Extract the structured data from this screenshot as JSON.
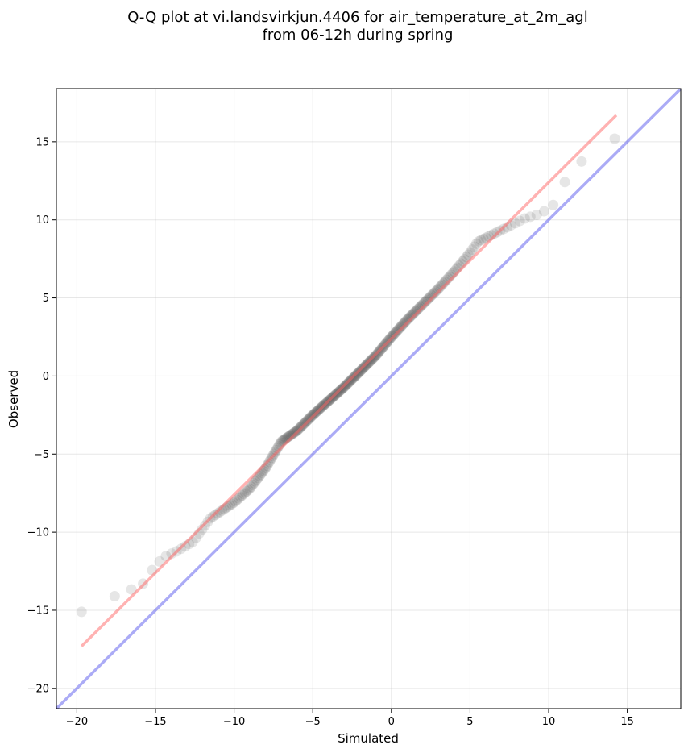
{
  "chart_data": {
    "type": "scatter",
    "title_lines": [
      "Q-Q plot at vi.landsvirkjun.4406 for air_temperature_at_2m_agl",
      "from 06-12h during spring"
    ],
    "xlabel": "Simulated",
    "ylabel": "Observed",
    "xlim": [
      -21.3,
      18.4
    ],
    "ylim": [
      -21.3,
      18.4
    ],
    "xticks": [
      -20,
      -15,
      -10,
      -5,
      0,
      5,
      10,
      15
    ],
    "yticks": [
      -20,
      -15,
      -10,
      -5,
      0,
      5,
      10,
      15
    ],
    "xtick_labels": [
      "−20",
      "−15",
      "−10",
      "−5",
      "0",
      "5",
      "10",
      "15"
    ],
    "ytick_labels": [
      "−20",
      "−15",
      "−10",
      "−5",
      "0",
      "5",
      "10",
      "15"
    ],
    "grid": true,
    "point_color": "#333333",
    "fit_line_color": "#ff6666",
    "identity_line_color": "#6666ee",
    "fit_line": {
      "x": [
        -19.7,
        14.3
      ],
      "y": [
        -17.3,
        16.7
      ]
    },
    "identity_line": {
      "x": [
        -21.3,
        18.4
      ],
      "y": [
        -21.3,
        18.4
      ]
    },
    "anchors": [
      {
        "x": -19.7,
        "y": -15.1
      },
      {
        "x": -19.1,
        "y": -14.4
      },
      {
        "x": -18.4,
        "y": -14.2
      },
      {
        "x": -17.6,
        "y": -14.1
      },
      {
        "x": -16.6,
        "y": -13.7
      },
      {
        "x": -15.6,
        "y": -13.2
      },
      {
        "x": -15.2,
        "y": -12.4
      },
      {
        "x": -14.5,
        "y": -11.6
      },
      {
        "x": -13.6,
        "y": -11.2
      },
      {
        "x": -12.6,
        "y": -10.6
      },
      {
        "x": -11.5,
        "y": -9.1
      },
      {
        "x": -10.0,
        "y": -8.1
      },
      {
        "x": -9.0,
        "y": -7.2
      },
      {
        "x": -8.0,
        "y": -5.9
      },
      {
        "x": -7.0,
        "y": -4.2
      },
      {
        "x": -6.0,
        "y": -3.5
      },
      {
        "x": -5.0,
        "y": -2.5
      },
      {
        "x": -4.0,
        "y": -1.6
      },
      {
        "x": -3.0,
        "y": -0.7
      },
      {
        "x": -2.0,
        "y": 0.3
      },
      {
        "x": -1.0,
        "y": 1.3
      },
      {
        "x": 0.0,
        "y": 2.5
      },
      {
        "x": 1.0,
        "y": 3.6
      },
      {
        "x": 2.0,
        "y": 4.6
      },
      {
        "x": 3.0,
        "y": 5.6
      },
      {
        "x": 4.0,
        "y": 6.7
      },
      {
        "x": 5.0,
        "y": 7.9
      },
      {
        "x": 5.5,
        "y": 8.6
      },
      {
        "x": 6.5,
        "y": 9.1
      },
      {
        "x": 7.5,
        "y": 9.6
      },
      {
        "x": 8.5,
        "y": 10.1
      },
      {
        "x": 9.5,
        "y": 10.4
      },
      {
        "x": 10.5,
        "y": 11.1
      },
      {
        "x": 11.3,
        "y": 13.1
      },
      {
        "x": 12.8,
        "y": 14.3
      },
      {
        "x": 13.4,
        "y": 14.8
      },
      {
        "x": 14.2,
        "y": 15.2
      }
    ],
    "sample_count": 280
  }
}
